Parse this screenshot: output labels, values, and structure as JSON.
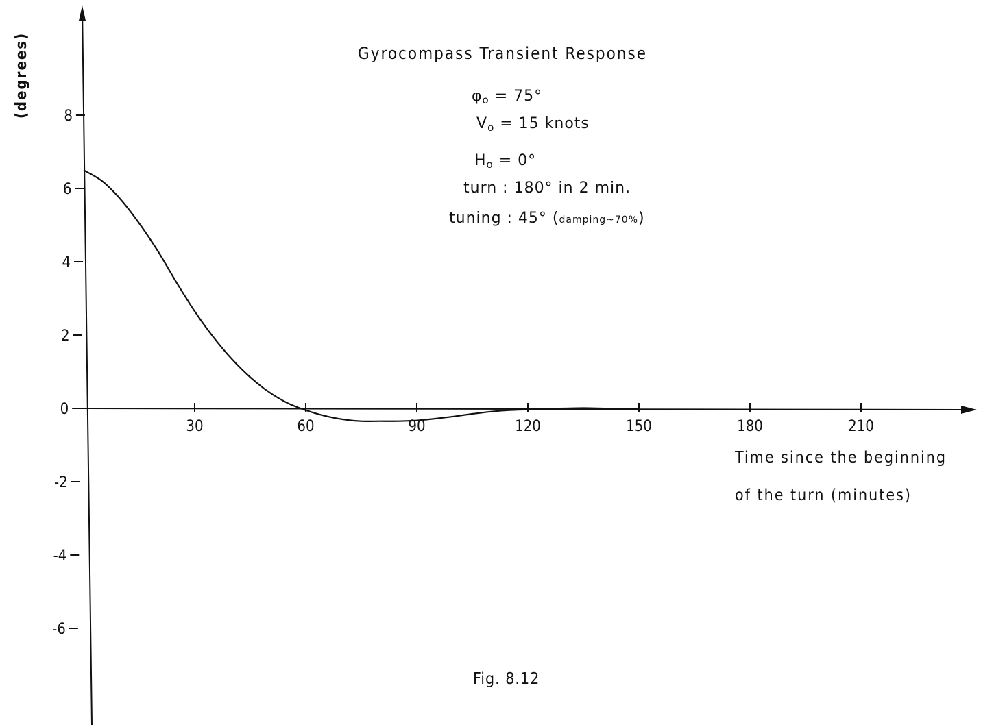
{
  "chart_data": {
    "type": "line",
    "title": "Gyrocompass Transient Response",
    "ylabel": "(degrees)",
    "xlabel_line1": "Time since the beginning",
    "xlabel_line2": "of the turn (minutes)",
    "xlim": [
      0,
      240
    ],
    "ylim": [
      -7,
      9
    ],
    "x_ticks": [
      30,
      60,
      90,
      120,
      150,
      180,
      210
    ],
    "x_tick_labels": [
      "30",
      "60",
      "90",
      "120",
      "150",
      "180",
      "210"
    ],
    "y_ticks": [
      8,
      6,
      4,
      2,
      0,
      -2,
      -4,
      -6
    ],
    "y_tick_labels": [
      "8",
      "6",
      "4",
      "2",
      "0",
      "-2",
      "-4",
      "-6"
    ],
    "grid": false,
    "series": [
      {
        "x": [
          0,
          5,
          10,
          15,
          20,
          25,
          30,
          35,
          40,
          45,
          50,
          55,
          60,
          65,
          70,
          75,
          80,
          85,
          90,
          95,
          100,
          105,
          110,
          115,
          120,
          125,
          130,
          135,
          140,
          145,
          150
        ],
        "y": [
          6.5,
          6.2,
          5.7,
          5.05,
          4.3,
          3.45,
          2.65,
          1.95,
          1.35,
          0.85,
          0.45,
          0.15,
          -0.05,
          -0.2,
          -0.3,
          -0.35,
          -0.35,
          -0.35,
          -0.33,
          -0.28,
          -0.22,
          -0.15,
          -0.09,
          -0.05,
          -0.03,
          -0.01,
          0.0,
          0.01,
          0.0,
          -0.01,
          0.0
        ]
      }
    ],
    "annotations": {
      "phi": "φ",
      "phi_sub": "o",
      "phi_value": "= 75°",
      "v": "V",
      "v_sub": "o",
      "v_value": "= 15 knots",
      "h": "H",
      "h_sub": "o",
      "h_value": "= 0°",
      "turn": "turn : 180° in 2 min.",
      "tuning": "tuning : 45° (",
      "damping": "damping~70%",
      "tuning_close": ")"
    },
    "caption": "Fig. 8.12"
  }
}
